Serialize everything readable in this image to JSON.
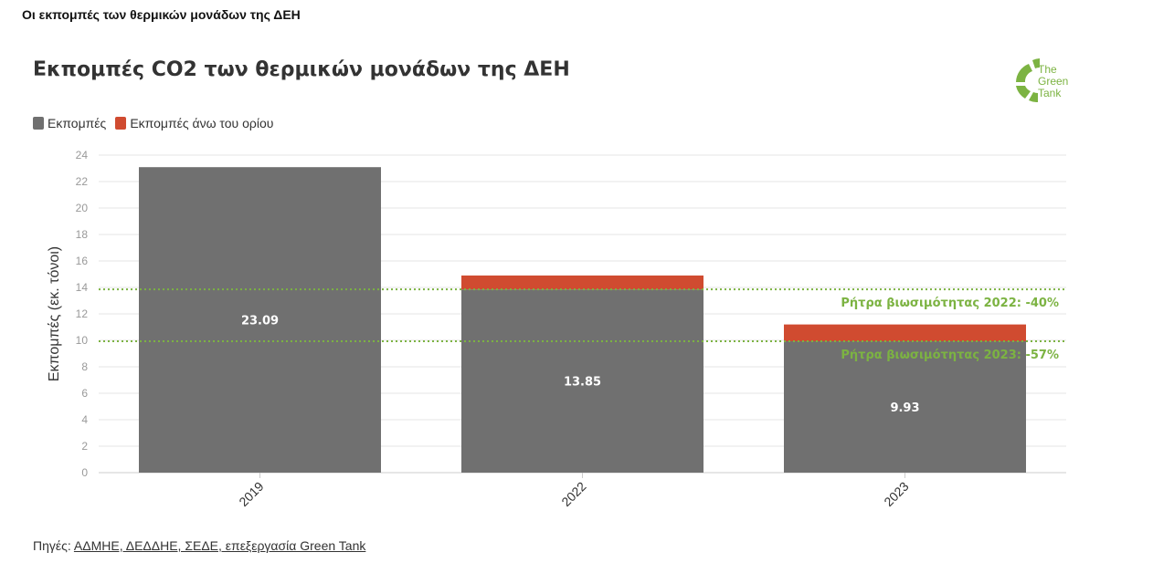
{
  "page_header": "Οι εκπομπές των θερμικών μονάδων της ΔΕΗ",
  "logo": {
    "line1": "The",
    "line2": "Green",
    "line3": "Tank"
  },
  "source": {
    "prefix": "Πηγές: ",
    "link_text": "ΑΔΜΗΕ, ΔΕΔΔΗΕ, ΣΕΔΕ, επεξεργασία Green Tank"
  },
  "colors": {
    "base": "#707070",
    "excess": "#d04b30",
    "threshold": "#7cb342"
  },
  "chart_data": {
    "type": "bar",
    "stacked": true,
    "title": "Εκπομπές CO2 των θερμικών μονάδων της ΔΕΗ",
    "xlabel": "",
    "ylabel": "Εκπομπές (εκ. τόνοι)",
    "ylim": [
      0,
      24
    ],
    "yticks": [
      0,
      2,
      4,
      6,
      8,
      10,
      12,
      14,
      16,
      18,
      20,
      22,
      24
    ],
    "grid": true,
    "legend_placement": "top-left",
    "categories": [
      "2019",
      "2022",
      "2023"
    ],
    "series": [
      {
        "name": "Εκπομπές",
        "values": [
          23.09,
          13.85,
          9.93
        ],
        "labels": [
          "23.09",
          "13.85",
          "9.93"
        ]
      },
      {
        "name": "Εκπομπές άνω του ορίου",
        "values": [
          0,
          1.05,
          1.27
        ]
      }
    ],
    "annotations": [
      {
        "y": 13.85,
        "label": "Ρήτρα βιωσιμότητας 2022: -40%"
      },
      {
        "y": 9.93,
        "label": "Ρήτρα βιωσιμότητας 2023: -57%"
      }
    ]
  }
}
